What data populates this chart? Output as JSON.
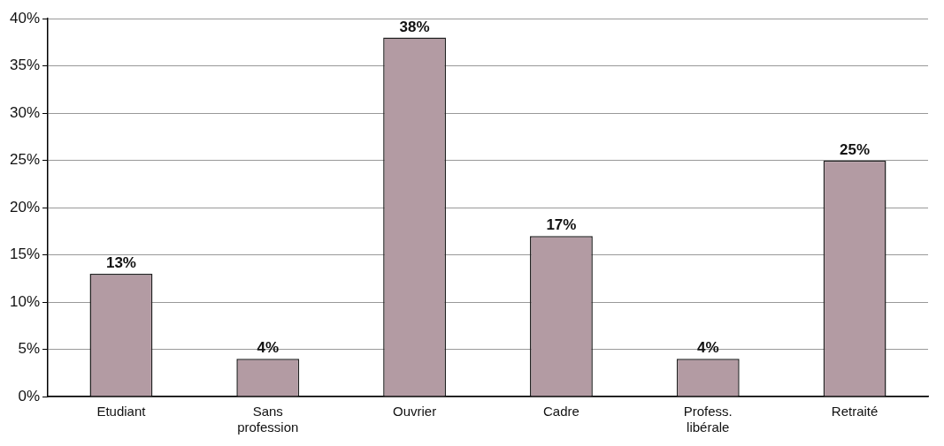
{
  "chart_data": {
    "type": "bar",
    "categories": [
      "Etudiant",
      "Sans profession",
      "Ouvrier",
      "Cadre",
      "Profess. libérale",
      "Retraité"
    ],
    "values": [
      13,
      4,
      38,
      17,
      4,
      25
    ],
    "value_labels": [
      "13%",
      "4%",
      "38%",
      "17%",
      "4%",
      "25%"
    ],
    "color": "#b39ba3",
    "ylim": [
      0,
      40
    ],
    "yticks": [
      {
        "value": 0,
        "label": "0%"
      },
      {
        "value": 5,
        "label": "5%"
      },
      {
        "value": 10,
        "label": "10%"
      },
      {
        "value": 15,
        "label": "15%"
      },
      {
        "value": 20,
        "label": "20%"
      },
      {
        "value": 25,
        "label": "25%"
      },
      {
        "value": 30,
        "label": "30%"
      },
      {
        "value": 35,
        "label": "35%"
      },
      {
        "value": 40,
        "label": "40%"
      }
    ],
    "grid": "y",
    "legend": false
  }
}
